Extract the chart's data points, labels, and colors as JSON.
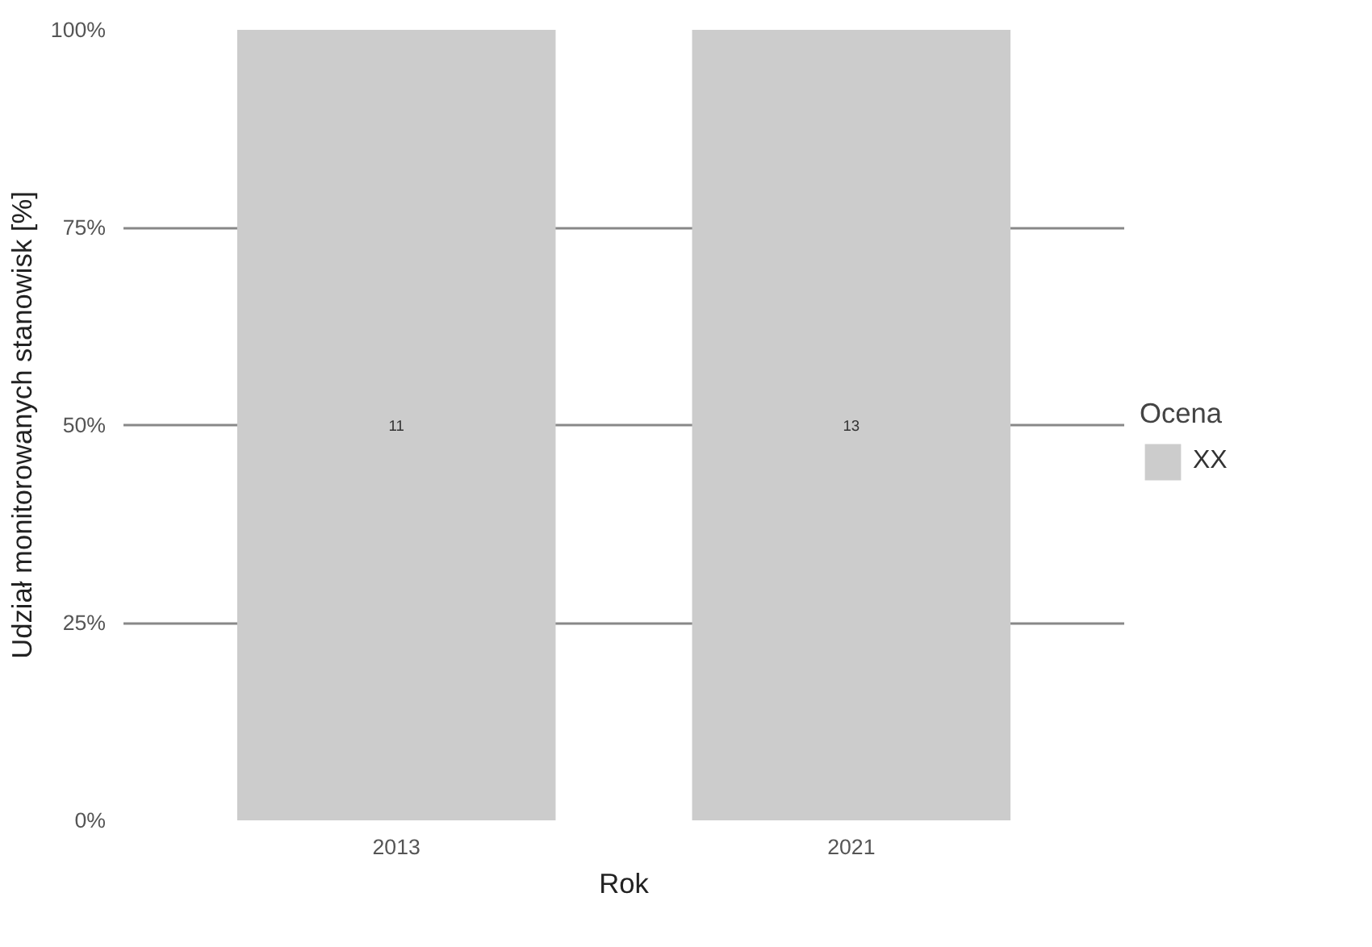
{
  "chart_data": {
    "type": "bar",
    "xlabel": "Rok",
    "ylabel": "Udział monitorowanych stanowisk [%]",
    "legend_title": "Ocena",
    "legend": "right",
    "grid": "y",
    "categories": [
      "2013",
      "2021"
    ],
    "series": [
      {
        "name": "XX",
        "color": "#cccccc",
        "values": [
          100,
          100
        ]
      }
    ],
    "annotations": [
      "11",
      "13"
    ],
    "ylim": [
      0,
      100
    ],
    "yticks": [
      {
        "value": 0,
        "label": "0%"
      },
      {
        "value": 25,
        "label": "25%"
      },
      {
        "value": 50,
        "label": "50%"
      },
      {
        "value": 75,
        "label": "75%"
      },
      {
        "value": 100,
        "label": "100%"
      }
    ]
  }
}
